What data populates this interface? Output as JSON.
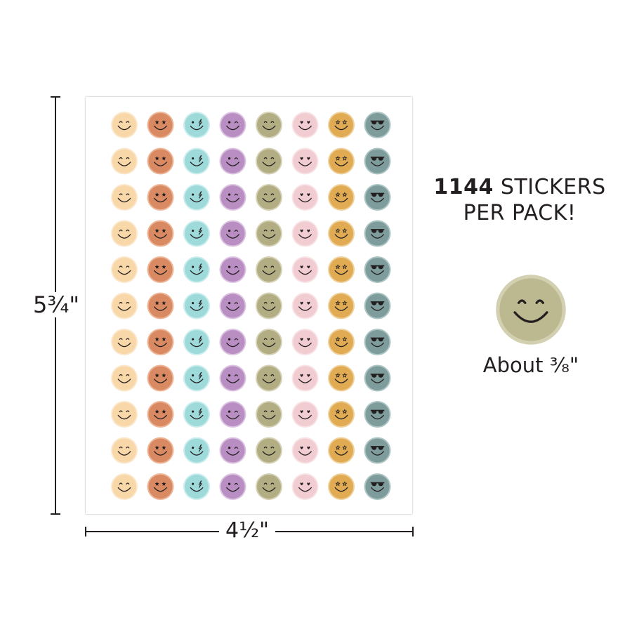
{
  "dimensions": {
    "height_label": "5¾\"",
    "width_label": "4½\""
  },
  "headline": {
    "count": "1144",
    "line1_suffix": " STICKERS",
    "line2": "PER PACK!"
  },
  "size_note": "About ³⁄₈\"",
  "sheet": {
    "rows": 11,
    "columns": [
      {
        "face": "smile",
        "fill": "#f8d7a8",
        "ring": "#fbe8cc"
      },
      {
        "face": "stars",
        "fill": "#d98a62",
        "ring": "#edb699"
      },
      {
        "face": "bolt",
        "fill": "#9fdadb",
        "ring": "#cdeeee"
      },
      {
        "face": "wink",
        "fill": "#b98ec2",
        "ring": "#dcc3e1"
      },
      {
        "face": "smile",
        "fill": "#b3ad84",
        "ring": "#d6d2b7"
      },
      {
        "face": "hearts",
        "fill": "#f1ccd1",
        "ring": "#f8e3e6"
      },
      {
        "face": "starry",
        "fill": "#e0ab53",
        "ring": "#efd19d"
      },
      {
        "face": "shades",
        "fill": "#7d9c9b",
        "ring": "#adc5c4"
      }
    ]
  },
  "sample_sticker": {
    "face": "smile",
    "fill": "#bcb890",
    "ring": "#d3d0b2"
  }
}
